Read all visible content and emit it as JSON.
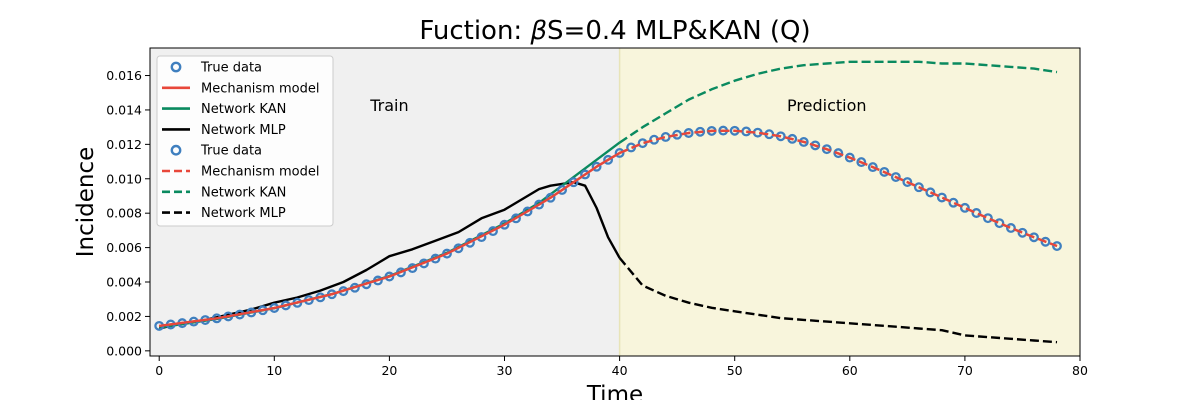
{
  "chart_data": {
    "type": "line",
    "title": "Fuction: βS=0.4 MLP&KAN (Q)",
    "xlabel": "Time",
    "ylabel": "Incidence",
    "xlim": [
      -0.8,
      80
    ],
    "ylim": [
      -0.0003,
      0.0176
    ],
    "xticks": [
      0,
      10,
      20,
      30,
      40,
      50,
      60,
      70,
      80
    ],
    "yticks": [
      0.0,
      0.002,
      0.004,
      0.006,
      0.008,
      0.01,
      0.012,
      0.014,
      0.016
    ],
    "ytick_labels": [
      "0.000",
      "0.002",
      "0.004",
      "0.006",
      "0.008",
      "0.010",
      "0.012",
      "0.014",
      "0.016"
    ],
    "grid": false,
    "legend_position": "top-left",
    "regions": [
      {
        "label": "Train",
        "x_start": -0.8,
        "x_end": 40,
        "color": "#f0f0f0",
        "label_x": 20,
        "label_y": 0.0143
      },
      {
        "label": "Prediction",
        "x_start": 40,
        "x_end": 80,
        "color": "#f8f5dc",
        "label_x": 58,
        "label_y": 0.0143
      }
    ],
    "legend": [
      {
        "label": "True data",
        "kind": "marker",
        "color": "#3f7fbf"
      },
      {
        "label": "Mechanism model",
        "kind": "solid",
        "color": "#e8473a"
      },
      {
        "label": "Network KAN",
        "kind": "solid",
        "color": "#0a8a5f"
      },
      {
        "label": "Network MLP",
        "kind": "solid",
        "color": "#000000"
      },
      {
        "label": "True data",
        "kind": "marker",
        "color": "#3f7fbf"
      },
      {
        "label": "Mechanism model",
        "kind": "dashed",
        "color": "#e8473a"
      },
      {
        "label": "Network KAN",
        "kind": "dashed",
        "color": "#0a8a5f"
      },
      {
        "label": "Network MLP",
        "kind": "dashed",
        "color": "#000000"
      }
    ],
    "true_data": {
      "x": [
        0,
        1,
        2,
        3,
        4,
        5,
        6,
        7,
        8,
        9,
        10,
        11,
        12,
        13,
        14,
        15,
        16,
        17,
        18,
        19,
        20,
        21,
        22,
        23,
        24,
        25,
        26,
        27,
        28,
        29,
        30,
        31,
        32,
        33,
        34,
        35,
        36,
        37,
        38,
        39,
        40,
        41,
        42,
        43,
        44,
        45,
        46,
        47,
        48,
        49,
        50,
        51,
        52,
        53,
        54,
        55,
        56,
        57,
        58,
        59,
        60,
        61,
        62,
        63,
        64,
        65,
        66,
        67,
        68,
        69,
        70,
        71,
        72,
        73,
        74,
        75,
        76,
        77,
        78
      ],
      "y": [
        0.00145,
        0.00153,
        0.00161,
        0.0017,
        0.00179,
        0.00189,
        0.002,
        0.00211,
        0.00223,
        0.00236,
        0.00249,
        0.00264,
        0.00279,
        0.00295,
        0.00311,
        0.00329,
        0.00347,
        0.00367,
        0.00387,
        0.00409,
        0.00432,
        0.00456,
        0.00481,
        0.00508,
        0.00536,
        0.00565,
        0.00596,
        0.00628,
        0.00661,
        0.00696,
        0.00733,
        0.0077,
        0.0081,
        0.0085,
        0.0089,
        0.00935,
        0.0098,
        0.01025,
        0.0107,
        0.0111,
        0.0115,
        0.01182,
        0.01207,
        0.01227,
        0.01243,
        0.01256,
        0.01266,
        0.01273,
        0.01278,
        0.0128,
        0.01279,
        0.01275,
        0.01268,
        0.01259,
        0.01247,
        0.01232,
        0.01214,
        0.01194,
        0.01172,
        0.01149,
        0.01123,
        0.01097,
        0.01068,
        0.0104,
        0.0101,
        0.00981,
        0.00951,
        0.00921,
        0.00891,
        0.00861,
        0.00831,
        0.00801,
        0.00771,
        0.00742,
        0.00714,
        0.00686,
        0.0066,
        0.00634,
        0.00609
      ]
    },
    "series": [
      {
        "name": "Mechanism model",
        "style": "solid",
        "color": "#e8473a",
        "x": [
          0,
          5,
          10,
          15,
          20,
          25,
          30,
          33,
          34,
          35,
          36,
          37,
          38,
          39,
          40
        ],
        "y": [
          0.00145,
          0.00189,
          0.00249,
          0.00329,
          0.00432,
          0.00565,
          0.00733,
          0.0085,
          0.0089,
          0.00935,
          0.0098,
          0.01025,
          0.0107,
          0.0111,
          0.0115
        ]
      },
      {
        "name": "Mechanism model",
        "style": "dashed",
        "color": "#e8473a",
        "x": [
          40,
          42,
          44,
          46,
          48,
          50,
          52,
          54,
          56,
          58,
          60,
          62,
          64,
          66,
          68,
          70,
          72,
          74,
          76,
          78
        ],
        "y": [
          0.0115,
          0.01207,
          0.01243,
          0.01266,
          0.01278,
          0.01279,
          0.01268,
          0.01247,
          0.01214,
          0.01172,
          0.01123,
          0.01068,
          0.0101,
          0.00951,
          0.00891,
          0.00831,
          0.00771,
          0.00714,
          0.0066,
          0.00609
        ]
      },
      {
        "name": "Network KAN",
        "style": "solid",
        "color": "#0a8a5f",
        "x": [
          0,
          5,
          10,
          15,
          20,
          25,
          30,
          33,
          34,
          35,
          36,
          37,
          38,
          39,
          40
        ],
        "y": [
          0.00135,
          0.00185,
          0.00248,
          0.0033,
          0.00435,
          0.0057,
          0.0074,
          0.0086,
          0.0091,
          0.0096,
          0.0101,
          0.0106,
          0.0111,
          0.0116,
          0.0121
        ]
      },
      {
        "name": "Network KAN",
        "style": "dashed",
        "color": "#0a8a5f",
        "x": [
          40,
          42,
          44,
          46,
          48,
          50,
          52,
          54,
          56,
          58,
          60,
          62,
          64,
          66,
          68,
          70,
          72,
          74,
          76,
          78
        ],
        "y": [
          0.0121,
          0.013,
          0.0138,
          0.0146,
          0.0152,
          0.0157,
          0.0161,
          0.0164,
          0.0166,
          0.0167,
          0.0168,
          0.0168,
          0.0168,
          0.0168,
          0.0167,
          0.0167,
          0.0166,
          0.0165,
          0.0164,
          0.0162
        ]
      },
      {
        "name": "Network MLP",
        "style": "solid",
        "color": "#000000",
        "x": [
          0,
          2,
          4,
          6,
          8,
          10,
          12,
          14,
          16,
          18,
          19,
          20,
          22,
          24,
          26,
          28,
          30,
          32,
          33,
          34,
          35,
          36,
          37,
          38,
          39,
          40
        ],
        "y": [
          0.0013,
          0.0016,
          0.0018,
          0.0021,
          0.0024,
          0.0028,
          0.0031,
          0.0035,
          0.004,
          0.0047,
          0.0051,
          0.0055,
          0.0059,
          0.0064,
          0.0069,
          0.0077,
          0.0082,
          0.009,
          0.0094,
          0.0096,
          0.0097,
          0.0098,
          0.0096,
          0.0083,
          0.0066,
          0.0054
        ]
      },
      {
        "name": "Network MLP",
        "style": "dashed",
        "color": "#000000",
        "x": [
          40,
          42,
          44,
          46,
          48,
          50,
          52,
          54,
          56,
          58,
          60,
          62,
          64,
          66,
          68,
          70,
          72,
          74,
          76,
          78
        ],
        "y": [
          0.0054,
          0.0038,
          0.0032,
          0.0028,
          0.0025,
          0.0023,
          0.0021,
          0.0019,
          0.0018,
          0.0017,
          0.0016,
          0.0015,
          0.0014,
          0.0013,
          0.0012,
          0.0009,
          0.0008,
          0.0007,
          0.0006,
          0.0005
        ]
      }
    ]
  }
}
